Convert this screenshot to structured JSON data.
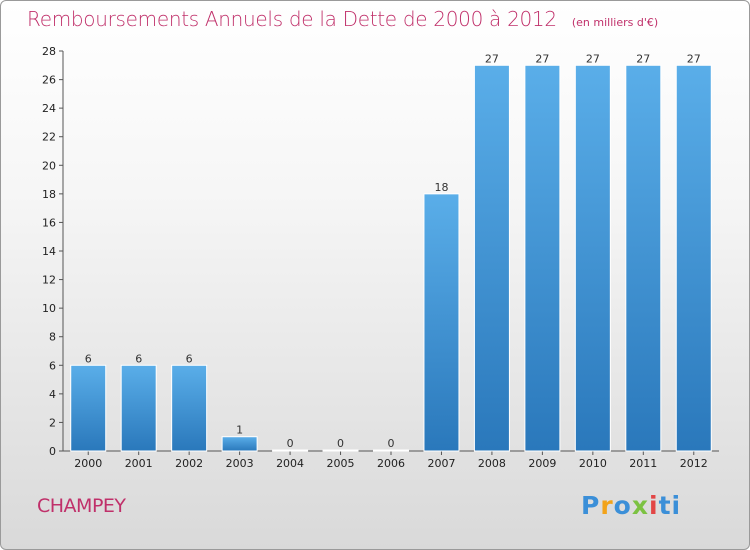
{
  "chart_data": {
    "type": "bar",
    "title": "Remboursements Annuels de la Dette de 2000 à 2012",
    "subtitle": "(en milliers d'€)",
    "categories": [
      "2000",
      "2001",
      "2002",
      "2003",
      "2004",
      "2005",
      "2006",
      "2007",
      "2008",
      "2009",
      "2010",
      "2011",
      "2012"
    ],
    "values": [
      6,
      6,
      6,
      1,
      0,
      0,
      0,
      18,
      27,
      27,
      27,
      27,
      27
    ],
    "ylim": [
      0,
      28
    ],
    "yticks": [
      0,
      2,
      4,
      6,
      8,
      10,
      12,
      14,
      16,
      18,
      20,
      22,
      24,
      26,
      28
    ],
    "xlabel": "",
    "ylabel": "",
    "grid": false,
    "bar_color": "#3d94d8"
  },
  "commune": "CHAMPEY",
  "logo": {
    "letters": [
      "P",
      "r",
      "o",
      "x",
      "i",
      "ti"
    ]
  }
}
